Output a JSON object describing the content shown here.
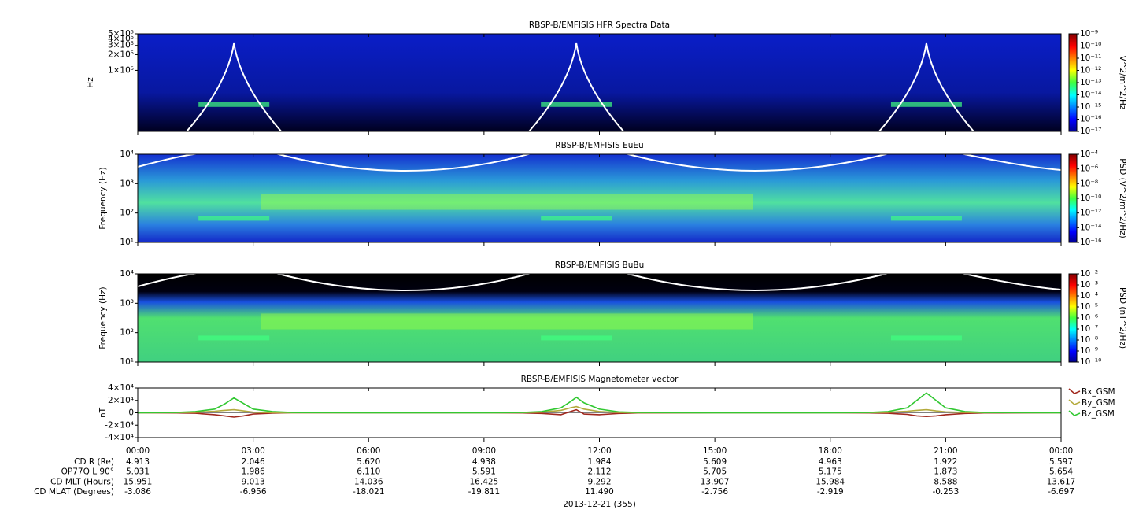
{
  "chart_data": [
    {
      "type": "spectrogram",
      "title": "RBSP-B/EMFISIS  HFR Spectra Data",
      "ylabel": "Hz",
      "log": true,
      "ylim": [
        6800,
        500000
      ],
      "yticks": [
        {
          "value": 100000,
          "label": "1×10⁵"
        },
        {
          "value": 200000,
          "label": "2×10⁵"
        },
        {
          "value": 300000,
          "label": "3×10⁵"
        },
        {
          "value": 400000,
          "label": "4×10⁵"
        },
        {
          "value": 500000,
          "label": "5×10⁵"
        }
      ],
      "colorbar_label": "V^2/m^2/Hz",
      "clim": [
        1e-17,
        1e-09
      ],
      "cticks": [
        {
          "value": 1e-09,
          "label": "10⁻⁹"
        },
        {
          "value": 1e-10,
          "label": "10⁻¹⁰"
        },
        {
          "value": 1e-11,
          "label": "10⁻¹¹"
        },
        {
          "value": 1e-12,
          "label": "10⁻¹²"
        },
        {
          "value": 1e-13,
          "label": "10⁻¹³"
        },
        {
          "value": 1e-14,
          "label": "10⁻¹⁴"
        },
        {
          "value": 1e-15,
          "label": "10⁻¹⁵"
        },
        {
          "value": 1e-16,
          "label": "10⁻¹⁶"
        },
        {
          "value": 1e-17,
          "label": "10⁻¹⁷"
        }
      ]
    },
    {
      "type": "spectrogram",
      "title": "RBSP-B/EMFISIS  EuEu",
      "ylabel": "Frequency (Hz)",
      "log": true,
      "ylim": [
        10,
        10000
      ],
      "yticks": [
        {
          "value": 10,
          "label": "10¹"
        },
        {
          "value": 100,
          "label": "10²"
        },
        {
          "value": 1000,
          "label": "10³"
        },
        {
          "value": 10000,
          "label": "10⁴"
        }
      ],
      "colorbar_label": "PSD (V^2/m^2/Hz)",
      "clim": [
        1e-16,
        0.0001
      ],
      "cticks": [
        {
          "value": 0.0001,
          "label": "10⁻⁴"
        },
        {
          "value": 1e-06,
          "label": "10⁻⁶"
        },
        {
          "value": 1e-08,
          "label": "10⁻⁸"
        },
        {
          "value": 1e-10,
          "label": "10⁻¹⁰"
        },
        {
          "value": 1e-12,
          "label": "10⁻¹²"
        },
        {
          "value": 1e-14,
          "label": "10⁻¹⁴"
        },
        {
          "value": 1e-16,
          "label": "10⁻¹⁶"
        }
      ]
    },
    {
      "type": "spectrogram",
      "title": "RBSP-B/EMFISIS  BuBu",
      "ylabel": "Frequency (Hz)",
      "log": true,
      "ylim": [
        10,
        10000
      ],
      "yticks": [
        {
          "value": 10,
          "label": "10¹"
        },
        {
          "value": 100,
          "label": "10²"
        },
        {
          "value": 1000,
          "label": "10³"
        },
        {
          "value": 10000,
          "label": "10⁴"
        }
      ],
      "colorbar_label": "PSD (nT^2/Hz)",
      "clim": [
        1e-10,
        0.01
      ],
      "cticks": [
        {
          "value": 0.01,
          "label": "10⁻²"
        },
        {
          "value": 0.001,
          "label": "10⁻³"
        },
        {
          "value": 0.0001,
          "label": "10⁻⁴"
        },
        {
          "value": 1e-05,
          "label": "10⁻⁵"
        },
        {
          "value": 1e-06,
          "label": "10⁻⁶"
        },
        {
          "value": 1e-07,
          "label": "10⁻⁷"
        },
        {
          "value": 1e-08,
          "label": "10⁻⁸"
        },
        {
          "value": 1e-09,
          "label": "10⁻⁹"
        },
        {
          "value": 1e-10,
          "label": "10⁻¹⁰"
        }
      ]
    },
    {
      "type": "line",
      "title": "RBSP-B/EMFISIS  Magnetometer vector",
      "ylabel": "nT",
      "ylim": [
        -40000,
        40000
      ],
      "yticks": [
        {
          "value": 40000,
          "label": "4×10⁴"
        },
        {
          "value": 20000,
          "label": "2×10⁴"
        },
        0,
        {
          "value": -20000,
          "label": "-2×10⁴"
        },
        {
          "value": -40000,
          "label": "-4×10⁴"
        }
      ],
      "xlim": [
        0,
        24
      ],
      "xticks": [
        {
          "value": 0,
          "label": "00:00"
        },
        {
          "value": 3,
          "label": "03:00"
        },
        {
          "value": 6,
          "label": "06:00"
        },
        {
          "value": 9,
          "label": "09:00"
        },
        {
          "value": 12,
          "label": "12:00"
        },
        {
          "value": 15,
          "label": "15:00"
        },
        {
          "value": 18,
          "label": "18:00"
        },
        {
          "value": 21,
          "label": "21:00"
        },
        {
          "value": 24,
          "label": "00:00"
        }
      ],
      "x": [
        0,
        1,
        1.5,
        2,
        2.25,
        2.5,
        2.75,
        3,
        3.5,
        4,
        6,
        9,
        10,
        10.5,
        11,
        11.25,
        11.4,
        11.6,
        12,
        12.5,
        13,
        15,
        18,
        19,
        19.5,
        20,
        20.25,
        20.5,
        20.75,
        21,
        21.5,
        22,
        24
      ],
      "series": [
        {
          "name": "Bx_GSM",
          "color": "#a0281e",
          "values": [
            0,
            -200,
            -800,
            -3000,
            -5000,
            -7000,
            -5000,
            -2000,
            -500,
            0,
            0,
            0,
            -300,
            -1000,
            -3000,
            2000,
            5000,
            -2000,
            -3000,
            -1000,
            -200,
            0,
            0,
            -200,
            -800,
            -2500,
            -5000,
            -6000,
            -5000,
            -3000,
            -1000,
            -300,
            0
          ]
        },
        {
          "name": "By_GSM",
          "color": "#b4aa3c",
          "values": [
            0,
            200,
            800,
            2500,
            4000,
            5000,
            3000,
            1000,
            300,
            0,
            0,
            0,
            300,
            1000,
            4000,
            8000,
            10000,
            6000,
            2000,
            500,
            100,
            0,
            0,
            200,
            800,
            2500,
            4000,
            5000,
            3000,
            1500,
            500,
            200,
            0
          ]
        },
        {
          "name": "Bz_GSM",
          "color": "#32c832",
          "values": [
            0,
            500,
            2000,
            6000,
            14000,
            24000,
            15000,
            6000,
            2000,
            500,
            0,
            0,
            500,
            2000,
            8000,
            18000,
            25000,
            16000,
            6000,
            1500,
            500,
            0,
            0,
            500,
            2000,
            8000,
            20000,
            32000,
            20000,
            8000,
            2000,
            500,
            0
          ]
        }
      ]
    }
  ],
  "ephemeris": {
    "rows": [
      {
        "label": "CD R (Re)",
        "values": [
          "4.913",
          "2.046",
          "5.620",
          "4.938",
          "1.984",
          "5.609",
          "4.963",
          "1.922",
          "5.597"
        ]
      },
      {
        "label": "OP77Q L 90°",
        "values": [
          "5.031",
          "1.986",
          "6.110",
          "5.591",
          "2.112",
          "5.705",
          "5.175",
          "1.873",
          "5.654"
        ]
      },
      {
        "label": "CD MLT (Hours)",
        "values": [
          "15.951",
          "9.013",
          "14.036",
          "16.425",
          "9.292",
          "13.907",
          "15.984",
          "8.588",
          "13.617"
        ]
      },
      {
        "label": "CD MLAT (Degrees)",
        "values": [
          "-3.086",
          "-6.956",
          "-18.021",
          "-19.811",
          "11.490",
          "-2.756",
          "-2.919",
          "-0.253",
          "-6.697"
        ]
      }
    ],
    "date": "2013-12-21 (355)"
  }
}
